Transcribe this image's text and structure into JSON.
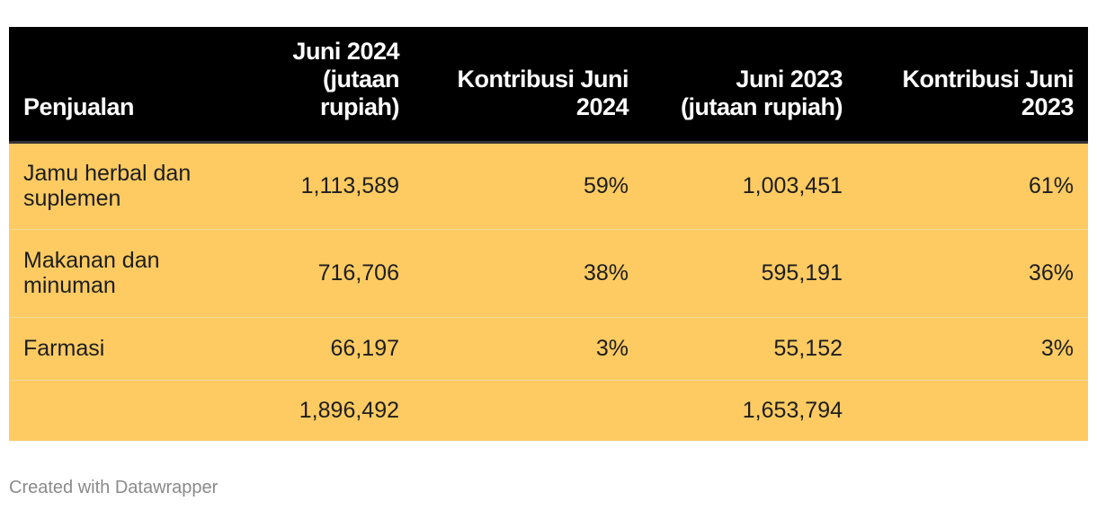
{
  "chart_data": {
    "type": "table",
    "columns": [
      "Penjualan",
      "Juni 2024 (jutaan rupiah)",
      "Kontribusi Juni 2024",
      "Juni 2023 (jutaan rupiah)",
      "Kontribusi Juni 2023"
    ],
    "rows": [
      [
        "Jamu herbal dan suplemen",
        "1,113,589",
        "59%",
        "1,003,451",
        "61%"
      ],
      [
        "Makanan dan minuman",
        "716,706",
        "38%",
        "595,191",
        "36%"
      ],
      [
        "Farmasi",
        "66,197",
        "3%",
        "55,152",
        "3%"
      ],
      [
        "",
        "1,896,492",
        "",
        "1,653,794",
        ""
      ]
    ]
  },
  "colors": {
    "header_background": "#000000",
    "header_text": "#ffffff",
    "row_background": "#fdcb62",
    "footer_text": "#8a8a8a"
  },
  "footer": {
    "credit": "Created with Datawrapper"
  }
}
